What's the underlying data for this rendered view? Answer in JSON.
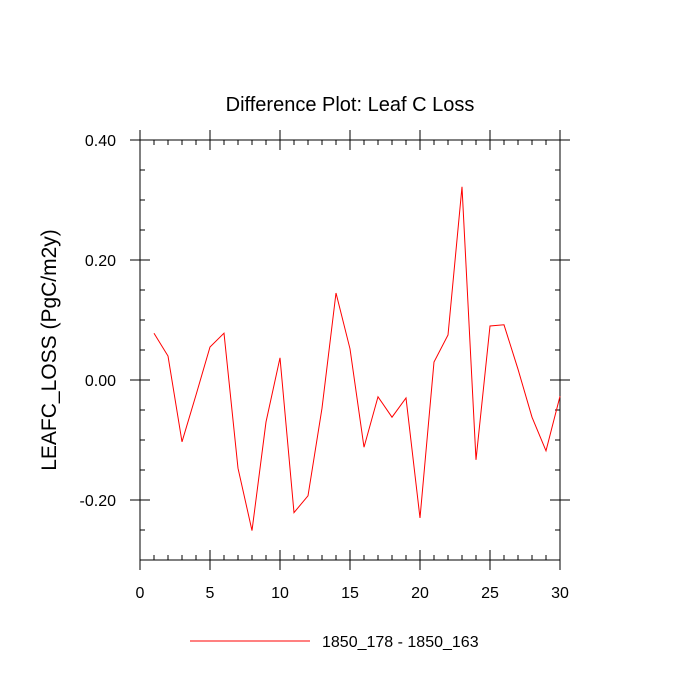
{
  "chart_data": {
    "type": "line",
    "title": "Difference Plot: Leaf C Loss",
    "xlabel": "",
    "ylabel": "LEAFC_LOSS  (PgC/m2y)",
    "xlim": [
      0,
      30
    ],
    "ylim": [
      -0.3,
      0.4
    ],
    "x_ticks": [
      0,
      5,
      10,
      15,
      20,
      25,
      30
    ],
    "x_tick_labels": [
      "0",
      "5",
      "10",
      "15",
      "20",
      "25",
      "30"
    ],
    "y_ticks": [
      -0.2,
      0.0,
      0.2,
      0.4
    ],
    "y_tick_labels": [
      "-0.20",
      "0.00",
      "0.20",
      "0.40"
    ],
    "grid": false,
    "legend_position": "bottom",
    "series": [
      {
        "name": "1850_178 - 1850_163",
        "color": "#ff0000",
        "x": [
          1,
          2,
          3,
          4,
          5,
          6,
          7,
          8,
          9,
          10,
          11,
          12,
          13,
          14,
          15,
          16,
          17,
          18,
          19,
          20,
          21,
          22,
          23,
          24,
          25,
          26,
          27,
          28,
          29,
          30
        ],
        "values": [
          0.078,
          0.04,
          -0.103,
          -0.025,
          0.055,
          0.078,
          -0.147,
          -0.251,
          -0.07,
          0.037,
          -0.221,
          -0.193,
          -0.047,
          0.145,
          0.052,
          -0.112,
          -0.028,
          -0.062,
          -0.03,
          -0.23,
          0.03,
          0.075,
          0.322,
          -0.133,
          0.09,
          0.092,
          0.018,
          -0.062,
          -0.118,
          -0.027
        ]
      }
    ]
  }
}
